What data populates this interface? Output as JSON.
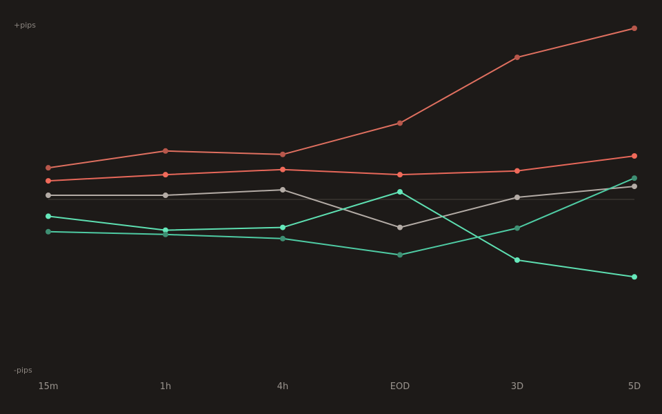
{
  "chart_data": {
    "type": "line",
    "title": "",
    "xlabel": "",
    "ylabel": "",
    "y_top_label": "+pips",
    "y_bottom_label": "-pips",
    "categories": [
      "15m",
      "1h",
      "4h",
      "EOD",
      "3D",
      "5D"
    ],
    "ylim": [
      -100,
      100
    ],
    "zero_line": true,
    "grid": false,
    "legend": "none",
    "series": [
      {
        "color": "#e07060",
        "point_color": "#b8574b",
        "values": [
          18.4,
          28.2,
          26.2,
          44.4,
          82.7,
          99.6
        ]
      },
      {
        "color": "#e8685a",
        "point_color": "#f06a5a",
        "values": [
          10.8,
          14.4,
          17.4,
          14.4,
          16.6,
          25.3
        ]
      },
      {
        "color": "#b4aca6",
        "point_color": "#b4aca6",
        "values": [
          2.4,
          2.4,
          5.6,
          -16.3,
          1.2,
          7.6
        ]
      },
      {
        "color": "#5ee0b2",
        "point_color": "#66e8bb",
        "values": [
          -9.8,
          -17.9,
          -16.3,
          4.4,
          -35.3,
          -45.1
        ]
      },
      {
        "color": "#4fcca4",
        "point_color": "#3e8f73",
        "values": [
          -18.8,
          -20.4,
          -22.8,
          -32.3,
          -16.7,
          12.4
        ]
      }
    ]
  }
}
